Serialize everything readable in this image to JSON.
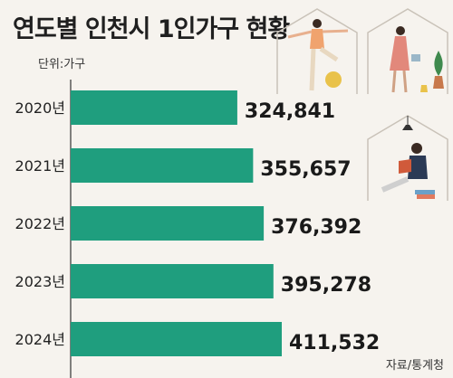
{
  "title": "연도별 인천시 1인가구 현황",
  "unit": "단위:가구",
  "source": "자료/통계청",
  "colors": {
    "bar": "#1f9e7e",
    "axis": "#333333",
    "background": "#f6f3ee"
  },
  "chart_data": {
    "type": "bar",
    "orientation": "horizontal",
    "title": "연도별 인천시 1인가구 현황",
    "unit": "단위:가구",
    "categories": [
      "2020년",
      "2021년",
      "2022년",
      "2023년",
      "2024년"
    ],
    "values": [
      324841,
      355657,
      376392,
      395278,
      411532
    ],
    "value_labels": [
      "324,841",
      "355,657",
      "376,392",
      "395,278",
      "411,532"
    ],
    "xlim": [
      0,
      411532
    ],
    "grid": false,
    "legend": "none"
  },
  "illustrations": [
    "yoga-person-icon",
    "watering-plants-person-icon",
    "reading-person-icon"
  ]
}
